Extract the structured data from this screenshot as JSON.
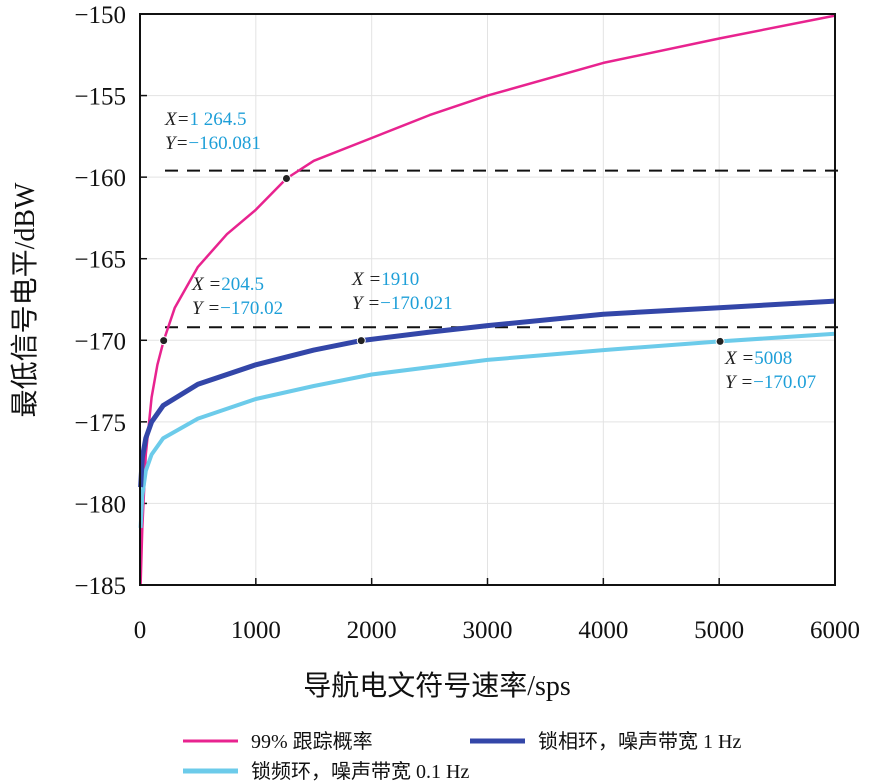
{
  "chart_data": {
    "type": "line",
    "title": "",
    "xlabel": "导航电文符号速率/sps",
    "ylabel": "最低信号电平/dBW",
    "xlim": [
      0,
      6000
    ],
    "ylim": [
      -185,
      -150
    ],
    "xticks": [
      "0",
      "1000",
      "2000",
      "3000",
      "4000",
      "5000",
      "6000"
    ],
    "yticks": [
      "-150",
      "-155",
      "-160",
      "-165",
      "-170",
      "-175",
      "-180",
      "-185"
    ],
    "grid": true,
    "legend_position": "bottom",
    "series": [
      {
        "name": "99% 跟踪概率",
        "color": "#e8238f",
        "x": [
          5,
          20,
          50,
          100,
          150,
          204.5,
          300,
          500,
          750,
          1000,
          1264.5,
          1500,
          2000,
          2500,
          3000,
          4000,
          5000,
          6000
        ],
        "y": [
          -186,
          -181.5,
          -177,
          -173.5,
          -171.5,
          -170.02,
          -168,
          -165.5,
          -163.5,
          -162,
          -160.081,
          -159,
          -157.6,
          -156.2,
          -155,
          -153,
          -151.5,
          -150.1
        ]
      },
      {
        "name": "锁相环，噪声带宽 1 Hz",
        "color": "#3346a8",
        "x": [
          5,
          20,
          50,
          100,
          200,
          500,
          1000,
          1500,
          1910,
          2500,
          3000,
          4000,
          5000,
          6000
        ],
        "y": [
          -179,
          -177.2,
          -176,
          -175,
          -174,
          -172.7,
          -171.5,
          -170.6,
          -170.021,
          -169.5,
          -169.1,
          -168.4,
          -168,
          -167.6
        ]
      },
      {
        "name": "锁频环，噪声带宽 0.1 Hz",
        "color": "#6ccbea",
        "x": [
          5,
          20,
          50,
          100,
          200,
          500,
          1000,
          1500,
          2000,
          3000,
          4000,
          5008,
          6000
        ],
        "y": [
          -181.5,
          -179.5,
          -178,
          -177,
          -176,
          -174.8,
          -173.6,
          -172.8,
          -172.1,
          -171.2,
          -170.6,
          -170.07,
          -169.6
        ]
      }
    ],
    "reference_lines": [
      -159.6,
      -169.2
    ],
    "annotations": [
      {
        "x_label": "X=",
        "x_value": "1 264.5",
        "y_label": "Y=",
        "y_value": "-160.081",
        "px": 1264.5,
        "py": -160.081
      },
      {
        "x_label": "X =",
        "x_value": "204.5",
        "y_label": "Y =",
        "y_value": "-170.02",
        "px": 204.5,
        "py": -170.02
      },
      {
        "x_label": "X =",
        "x_value": "1910",
        "y_label": "Y =",
        "y_value": "-170.021",
        "px": 1910,
        "py": -170.021
      },
      {
        "x_label": "X =",
        "x_value": "5008",
        "y_label": "Y =",
        "y_value": "-170.07",
        "px": 5008,
        "py": -170.07
      }
    ]
  }
}
